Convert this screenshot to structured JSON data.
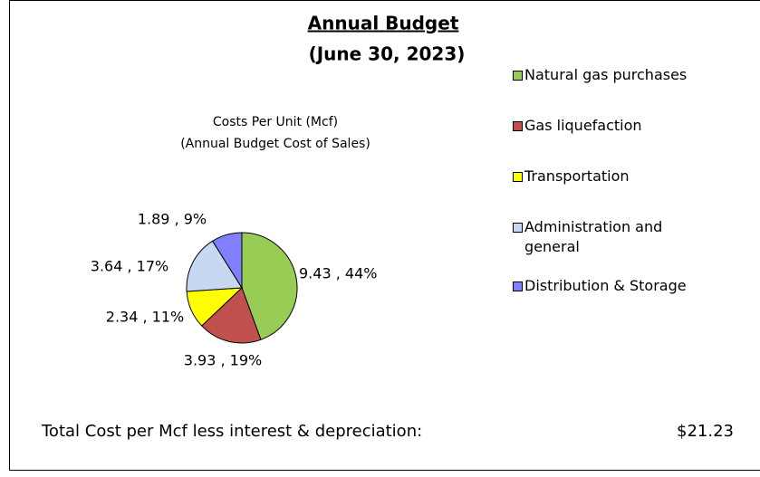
{
  "chart_data": {
    "type": "pie",
    "title": [
      "Annual Budget",
      "(June 30, 2023)"
    ],
    "subtitle": [
      "Costs Per Unit (Mcf)",
      "(Annual Budget Cost of Sales)"
    ],
    "categories": [
      "Natural gas purchases",
      "Gas liquefaction",
      "Transportation",
      "Administration and general",
      "Distribution & Storage"
    ],
    "values": [
      9.43,
      3.93,
      2.34,
      3.64,
      1.89
    ],
    "value_labels": [
      "9.43 , 44%",
      "3.93 , 19%",
      "2.34 , 11%",
      "3.64 , 17%",
      "1.89 , 9%"
    ],
    "colors": [
      "#99cc55",
      "#c0504d",
      "#ffff00",
      "#c6d9f1",
      "#8080ff"
    ],
    "legend": "right",
    "footer": {
      "label": "Total Cost per Mcf less interest & depreciation:",
      "value": "$21.23"
    }
  }
}
